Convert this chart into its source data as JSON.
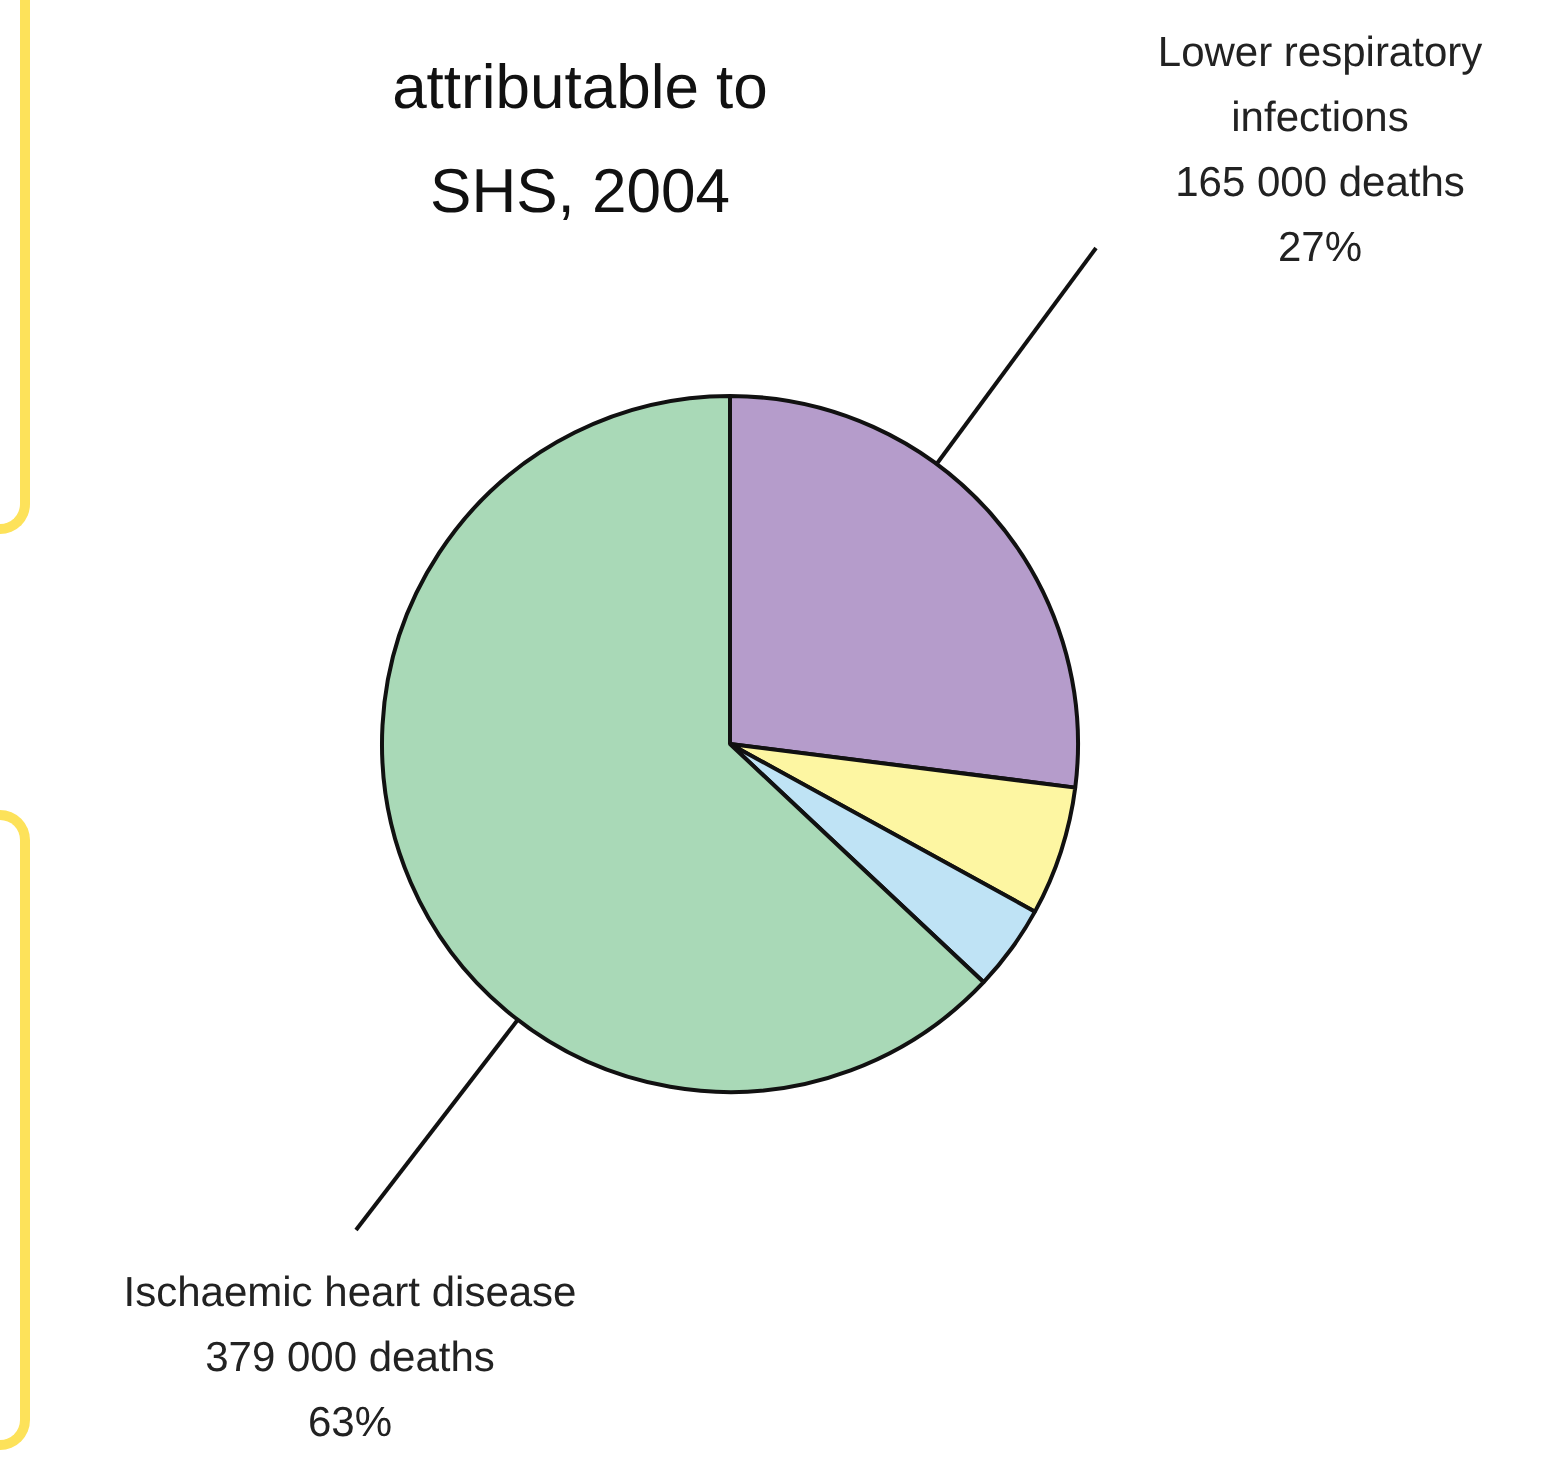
{
  "chart_data": {
    "type": "pie",
    "title": "attributable to SHS, 2004",
    "categories": [
      "Lower respiratory infections",
      null,
      null,
      "Ischaemic heart disease"
    ],
    "values": [
      27,
      6,
      4,
      63
    ],
    "colors": [
      "#b59ccb",
      "#fdf6a2",
      "#bfe3f5",
      "#a9d9b7"
    ],
    "value_labels": [
      "165 000 deaths\n27%",
      null,
      null,
      "379 000 deaths\n63%"
    ],
    "legend": false
  }
}
